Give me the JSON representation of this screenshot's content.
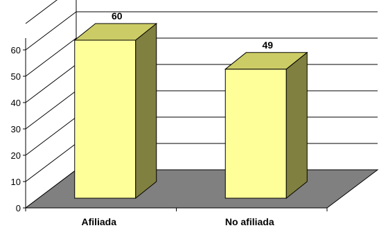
{
  "chart_data": {
    "type": "bar",
    "style": "3d",
    "categories": [
      "Afiliada",
      "No afiliada"
    ],
    "values": [
      60,
      49
    ],
    "data_labels": [
      "60",
      "49"
    ],
    "yticks": [
      "0",
      "10",
      "20",
      "30",
      "40",
      "50",
      "60"
    ],
    "ylim": [
      0,
      70
    ],
    "grid": true,
    "legend": "none",
    "colors": {
      "bar_front": "#ffff99",
      "bar_top": "#cccc66",
      "bar_side": "#808040",
      "floor": "#808080",
      "grid": "#000000"
    }
  }
}
